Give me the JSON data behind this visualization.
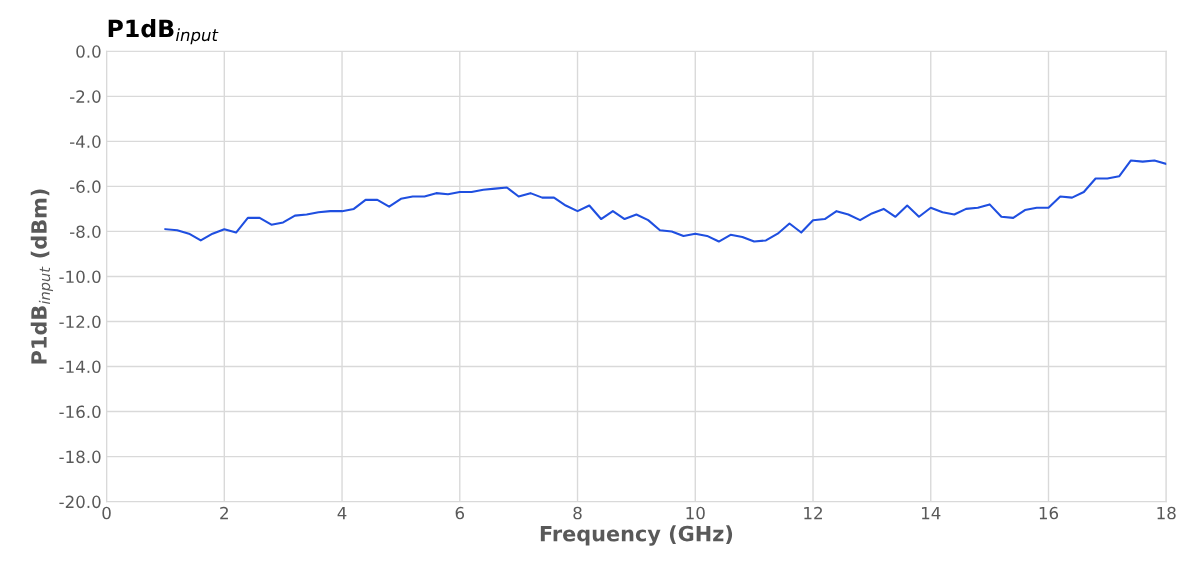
{
  "chart_data": {
    "type": "line",
    "title": "P1dB$_{input}$",
    "xlabel": "Frequency (GHz)",
    "ylabel": "P1dB$_{input}$ (dBm)",
    "x": [
      1.0,
      1.2,
      1.4,
      1.6,
      1.8,
      2.0,
      2.2,
      2.4,
      2.6,
      2.8,
      3.0,
      3.2,
      3.4,
      3.6,
      3.8,
      4.0,
      4.2,
      4.4,
      4.6,
      4.8,
      5.0,
      5.2,
      5.4,
      5.6,
      5.8,
      6.0,
      6.2,
      6.4,
      6.6,
      6.8,
      7.0,
      7.2,
      7.4,
      7.6,
      7.8,
      8.0,
      8.2,
      8.4,
      8.6,
      8.8,
      9.0,
      9.2,
      9.4,
      9.6,
      9.8,
      10.0,
      10.2,
      10.4,
      10.6,
      10.8,
      11.0,
      11.2,
      11.4,
      11.6,
      11.8,
      12.0,
      12.2,
      12.4,
      12.6,
      12.8,
      13.0,
      13.2,
      13.4,
      13.6,
      13.8,
      14.0,
      14.2,
      14.4,
      14.6,
      14.8,
      15.0,
      15.2,
      15.4,
      15.6,
      15.8,
      16.0,
      16.2,
      16.4,
      16.6,
      16.8,
      17.0,
      17.2,
      17.4,
      17.6,
      17.8,
      18.0
    ],
    "series": [
      {
        "color": "#1f4fe0",
        "values": [
          -7.9,
          -7.95,
          -8.1,
          -8.4,
          -8.1,
          -7.9,
          -8.05,
          -7.4,
          -7.4,
          -7.7,
          -7.6,
          -7.3,
          -7.25,
          -7.15,
          -7.1,
          -7.1,
          -7.0,
          -6.6,
          -6.6,
          -6.9,
          -6.55,
          -6.45,
          -6.45,
          -6.3,
          -6.35,
          -6.25,
          -6.25,
          -6.15,
          -6.1,
          -6.05,
          -6.45,
          -6.3,
          -6.5,
          -6.5,
          -6.85,
          -7.1,
          -6.85,
          -7.45,
          -7.1,
          -7.45,
          -7.25,
          -7.5,
          -7.95,
          -8.0,
          -8.2,
          -8.1,
          -8.2,
          -8.45,
          -8.15,
          -8.25,
          -8.45,
          -8.4,
          -8.1,
          -7.65,
          -8.05,
          -7.5,
          -7.45,
          -7.1,
          -7.25,
          -7.5,
          -7.2,
          -7.0,
          -7.35,
          -6.85,
          -7.35,
          -6.95,
          -7.15,
          -7.25,
          -7.0,
          -6.95,
          -6.8,
          -7.35,
          -7.4,
          -7.05,
          -6.95,
          -6.95,
          -6.45,
          -6.5,
          -6.25,
          -5.65,
          -5.65,
          -5.55,
          -4.85,
          -4.9,
          -4.85,
          -5.0
        ]
      }
    ],
    "xlim": [
      0,
      18
    ],
    "xticks": [
      0,
      2,
      4,
      6,
      8,
      10,
      12,
      14,
      16,
      18
    ],
    "ylim": [
      -20,
      0
    ],
    "yticks": [
      {
        "value": -20,
        "label": "-20.0"
      },
      {
        "value": -18,
        "label": "-18.0"
      },
      {
        "value": -16,
        "label": "-16.0"
      },
      {
        "value": -14,
        "label": "-14.0"
      },
      {
        "value": -12,
        "label": "-12.0"
      },
      {
        "value": -10,
        "label": "-10.0"
      },
      {
        "value": -8,
        "label": "-8.0"
      },
      {
        "value": -6,
        "label": "-6.0"
      },
      {
        "value": -4,
        "label": "-4.0"
      },
      {
        "value": -2,
        "label": "-2.0"
      },
      {
        "value": 0,
        "label": "0.0"
      }
    ],
    "grid": true,
    "legend": false,
    "marker": "none",
    "line_style": "solid"
  }
}
